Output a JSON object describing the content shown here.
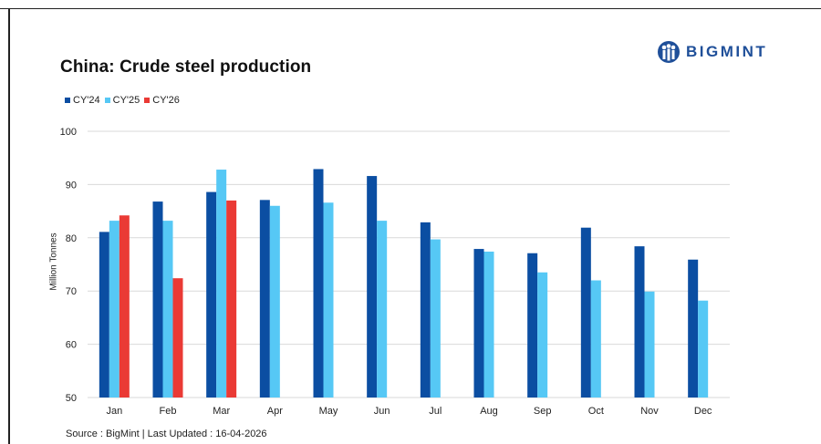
{
  "title": "China: Crude steel production",
  "logo": {
    "text": "BIGMINT",
    "icon": "bigmint-logo-icon",
    "color": "#1f4f99"
  },
  "source": "Source : BigMint | Last Updated : 16-04-2026",
  "chart_data": {
    "type": "bar",
    "title": "China: Crude steel production",
    "xlabel": "",
    "ylabel": "Million Tonnes",
    "ylim": [
      50,
      100
    ],
    "yticks": [
      50,
      60,
      70,
      80,
      90,
      100
    ],
    "grid": true,
    "legend_position": "top-left",
    "categories": [
      "Jan",
      "Feb",
      "Mar",
      "Apr",
      "May",
      "Jun",
      "Jul",
      "Aug",
      "Sep",
      "Oct",
      "Nov",
      "Dec"
    ],
    "series": [
      {
        "name": "CY'24",
        "color": "#0b4ea2",
        "values": [
          81.1,
          86.8,
          88.6,
          87.1,
          92.9,
          91.6,
          82.9,
          77.9,
          77.1,
          81.9,
          78.4,
          75.9
        ]
      },
      {
        "name": "CY'25",
        "color": "#56c8f5",
        "values": [
          83.2,
          83.2,
          92.8,
          86.0,
          86.6,
          83.2,
          79.7,
          77.4,
          73.5,
          72.0,
          69.9,
          68.2
        ]
      },
      {
        "name": "CY'26",
        "color": "#ea3a35",
        "values": [
          84.2,
          72.4,
          87.0,
          null,
          null,
          null,
          null,
          null,
          null,
          null,
          null,
          null
        ]
      }
    ]
  }
}
